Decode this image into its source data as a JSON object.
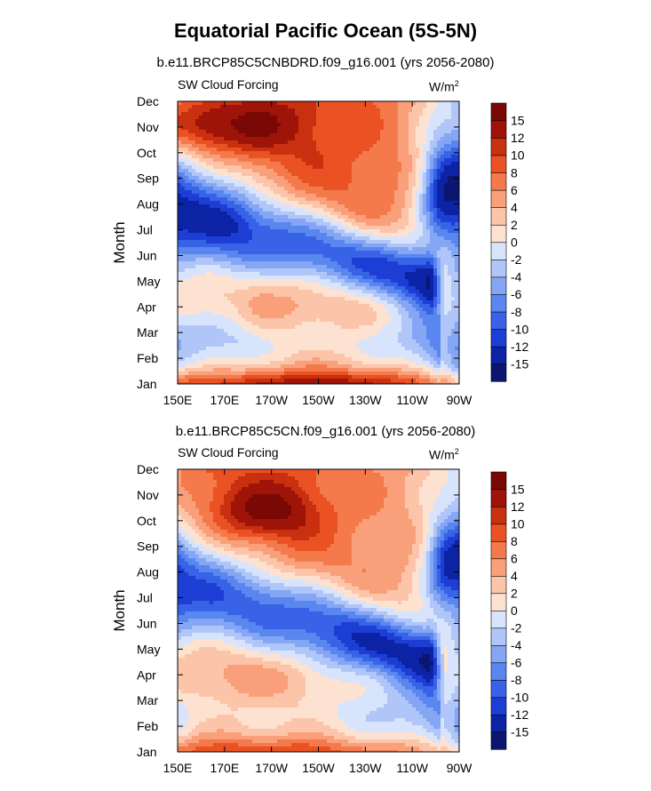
{
  "page_title": "Equatorial Pacific Ocean (5S-5N)",
  "chart_data": [
    {
      "type": "heatmap",
      "title": "b.e11.BRCP85C5CNBDRD.f09_g16.001 (yrs 2056-2080)",
      "left_label": "SW Cloud Forcing",
      "units_base": "W/m",
      "units_exp": "2",
      "ylabel": "Month",
      "xlabel": "",
      "x_ticks": [
        "150E",
        "170E",
        "170W",
        "150W",
        "130W",
        "110W",
        "90W"
      ],
      "x_lon": [
        150,
        170,
        190,
        210,
        230,
        250,
        270
      ],
      "xlim": [
        150,
        270
      ],
      "y_ticks": [
        "Jan",
        "Feb",
        "Mar",
        "Apr",
        "May",
        "Jun",
        "Jul",
        "Aug",
        "Sep",
        "Oct",
        "Nov",
        "Dec"
      ],
      "ylim": [
        1,
        12
      ],
      "colorbar_levels": [
        -15,
        -12,
        -10,
        -8,
        -6,
        -4,
        -2,
        0,
        2,
        4,
        6,
        8,
        10,
        12,
        15
      ],
      "colorbar_labels": [
        "-15",
        "-12",
        "-10",
        "-8",
        "-6",
        "-4",
        "-2",
        "0",
        "2",
        "4",
        "6",
        "8",
        "10",
        "12",
        "15"
      ],
      "field": {
        "base": [
          [
            150,
            4
          ],
          [
            160,
            5
          ],
          [
            175,
            6
          ],
          [
            185,
            8
          ],
          [
            200,
            9
          ],
          [
            210,
            9
          ],
          [
            220,
            9
          ],
          [
            232,
            8
          ],
          [
            245,
            6
          ],
          [
            255,
            3
          ],
          [
            262,
            0
          ],
          [
            266,
            -1
          ],
          [
            270,
            -3
          ]
        ],
        "cold_band": {
          "start_lon": 150,
          "start_month": 7.7,
          "end_lon": 257,
          "end_month": 5.0,
          "width": 1.5,
          "amp": -18
        },
        "warm_nov": {
          "lon": 170,
          "month": 11.1,
          "lon_sigma": 22,
          "month_sigma": 0.8,
          "amp": 10
        },
        "east_cold": {
          "lon": 265,
          "month": 8.5,
          "lon_sigma": 8,
          "month_sigma": 1.3,
          "amp": -15
        },
        "spring_cool": {
          "month": 2.6,
          "month_sigma": 0.9,
          "amp": -8
        },
        "jan_warm": {
          "month": 1.0,
          "month_sigma": 0.35,
          "amp": 6
        }
      }
    },
    {
      "type": "heatmap",
      "title": "b.e11.BRCP85C5CN.f09_g16.001 (yrs 2056-2080)",
      "left_label": "SW Cloud Forcing",
      "units_base": "W/m",
      "units_exp": "2",
      "ylabel": "Month",
      "xlabel": "",
      "x_ticks": [
        "150E",
        "170E",
        "170W",
        "150W",
        "130W",
        "110W",
        "90W"
      ],
      "x_lon": [
        150,
        170,
        190,
        210,
        230,
        250,
        270
      ],
      "xlim": [
        150,
        270
      ],
      "y_ticks": [
        "Jan",
        "Feb",
        "Mar",
        "Apr",
        "May",
        "Jun",
        "Jul",
        "Aug",
        "Sep",
        "Oct",
        "Nov",
        "Dec"
      ],
      "ylim": [
        1,
        12
      ],
      "colorbar_levels": [
        -15,
        -12,
        -10,
        -8,
        -6,
        -4,
        -2,
        0,
        2,
        4,
        6,
        8,
        10,
        12,
        15
      ],
      "colorbar_labels": [
        "-15",
        "-12",
        "-10",
        "-8",
        "-6",
        "-4",
        "-2",
        "0",
        "2",
        "4",
        "6",
        "8",
        "10",
        "12",
        "15"
      ],
      "field": {
        "base": [
          [
            150,
            6
          ],
          [
            160,
            8
          ],
          [
            175,
            9
          ],
          [
            185,
            9
          ],
          [
            200,
            9
          ],
          [
            210,
            8
          ],
          [
            220,
            7
          ],
          [
            232,
            6
          ],
          [
            245,
            5
          ],
          [
            255,
            3
          ],
          [
            262,
            1
          ],
          [
            266,
            0
          ],
          [
            270,
            -2
          ]
        ],
        "cold_band": {
          "start_lon": 150,
          "start_month": 7.5,
          "end_lon": 257,
          "end_month": 4.6,
          "width": 1.6,
          "amp": -18
        },
        "warm_nov": {
          "lon": 188,
          "month": 10.4,
          "lon_sigma": 14,
          "month_sigma": 0.7,
          "amp": 8
        },
        "east_cold": {
          "lon": 266,
          "month": 8.3,
          "lon_sigma": 7,
          "month_sigma": 1.2,
          "amp": -14
        },
        "spring_cool": {
          "month": 2.4,
          "month_sigma": 0.9,
          "amp": -7
        },
        "jan_warm": {
          "month": 1.0,
          "month_sigma": 0.35,
          "amp": 3
        }
      }
    }
  ],
  "colors": {
    "levels": [
      "#0a1670",
      "#0c23a6",
      "#1d3ed4",
      "#3863e6",
      "#5a86ef",
      "#84a6f4",
      "#b0c6f8",
      "#d8e4fb",
      "#fde2d2",
      "#fcc4a8",
      "#f9a07a",
      "#f47a4c",
      "#ea5224",
      "#c9300f",
      "#9f1409",
      "#7a0906"
    ]
  }
}
